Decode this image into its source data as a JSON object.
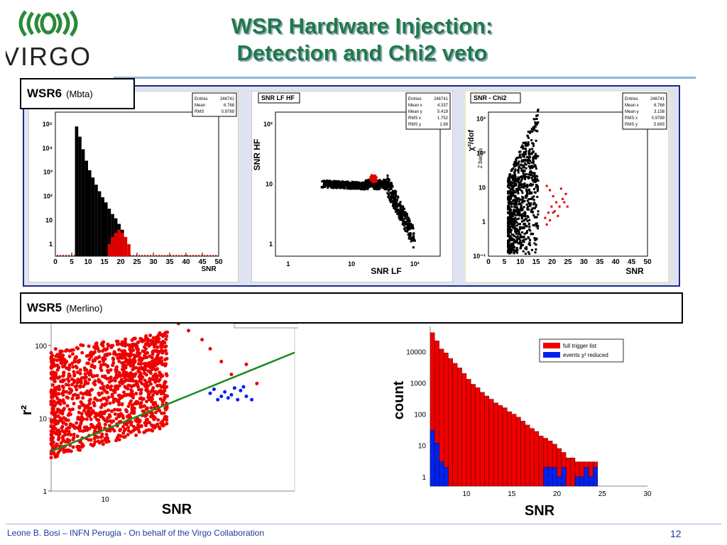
{
  "slide": {
    "title_line1": "WSR Hardware Injection:",
    "title_line2": "Detection and Chi2 veto",
    "logo_text": "VIRGO",
    "wsr6_label": "WSR6",
    "wsr6_sub": "(Mbta)",
    "wsr5_label": "WSR5",
    "wsr5_sub": "(Merlino)",
    "footer_text": "Leone B. Bosi – INFN Perugia - On behalf of the Virgo Collaboration",
    "page_number": "12",
    "colors": {
      "title": "#1f7a4a",
      "accent": "#1c2a8c",
      "signal": "#dd0000",
      "veto": "#0022ee",
      "fit": "#1a8a1a"
    }
  },
  "chart_data": [
    {
      "type": "bar",
      "xlabel": "SNR",
      "xticks": [
        0,
        5,
        10,
        15,
        20,
        25,
        30,
        35,
        40,
        45,
        50
      ],
      "yticks": [
        "1",
        "10",
        "10²",
        "10³",
        "10⁴",
        "10⁵"
      ],
      "log_y": true,
      "stats": [
        [
          "Entries",
          "246741"
        ],
        [
          "Mean",
          "6.768"
        ],
        [
          "RMS",
          "0.9789"
        ]
      ],
      "series": [
        {
          "color": "#000000",
          "x": [
            6,
            7,
            8,
            9,
            10,
            11,
            12,
            13,
            14,
            15,
            16,
            17,
            18,
            19,
            20
          ],
          "values": [
            80000,
            30000,
            9000,
            3000,
            1200,
            600,
            300,
            160,
            90,
            55,
            30,
            18,
            12,
            7,
            4
          ]
        },
        {
          "color": "#dd0000",
          "x": [
            16,
            17,
            18,
            19,
            20,
            21,
            22
          ],
          "values": [
            1,
            2,
            3,
            4,
            3,
            2,
            1
          ]
        }
      ]
    },
    {
      "type": "scatter",
      "title": "SNR LF HF",
      "xlabel": "SNR LF",
      "ylabel": "SNR HF",
      "xticks": [
        "1",
        "10",
        "10²"
      ],
      "yticks": [
        "1",
        "10",
        "10²"
      ],
      "stats": [
        [
          "Entries",
          "246741"
        ],
        [
          "Mean x",
          "4.337"
        ],
        [
          "Mean y",
          "5.419"
        ],
        [
          "RMS x",
          "1.752"
        ],
        [
          "RMS y",
          "1.69"
        ]
      ]
    },
    {
      "type": "scatter",
      "title": "SNR - Chi2",
      "xlabel": "SNR",
      "ylabel": "χ²/dof",
      "ylabel_sub": "2 bands",
      "xticks": [
        0,
        5,
        10,
        15,
        20,
        25,
        30,
        35,
        40,
        45,
        50
      ],
      "yticks": [
        "10⁻¹",
        "1",
        "10",
        "10²",
        "10³"
      ],
      "stats": [
        [
          "Entries",
          "246741"
        ],
        [
          "Mean x",
          "6.768"
        ],
        [
          "Mean y",
          "3.158"
        ],
        [
          "RMS x",
          "0.9789"
        ],
        [
          "RMS y",
          "5.693"
        ]
      ],
      "highlight": [
        [
          18,
          12
        ],
        [
          19,
          9
        ],
        [
          20,
          6
        ],
        [
          21,
          4
        ],
        [
          22,
          3
        ],
        [
          23,
          5
        ],
        [
          24,
          7
        ],
        [
          18.5,
          2
        ],
        [
          19.5,
          3
        ],
        [
          20.5,
          2.2
        ],
        [
          21.5,
          1.6
        ],
        [
          22.5,
          10
        ],
        [
          23.5,
          4
        ],
        [
          24.5,
          3
        ],
        [
          17.5,
          1.4
        ],
        [
          18,
          0.9
        ],
        [
          19,
          1.2
        ],
        [
          20,
          2
        ]
      ]
    },
    {
      "type": "scatter",
      "xlabel": "SNR",
      "ylabel": "r²",
      "xticks": [
        "10"
      ],
      "yticks": [
        "1",
        "10",
        "100"
      ],
      "log_y": true,
      "blue_points": [
        [
          27,
          22
        ],
        [
          28,
          25
        ],
        [
          29,
          18
        ],
        [
          30,
          20
        ],
        [
          31,
          23
        ],
        [
          32,
          19
        ],
        [
          33,
          21
        ],
        [
          34,
          26
        ],
        [
          35,
          18
        ],
        [
          36,
          24
        ],
        [
          37,
          27
        ],
        [
          38,
          20
        ],
        [
          40,
          18
        ]
      ]
    },
    {
      "type": "bar",
      "xlabel": "SNR",
      "ylabel": "count",
      "xticks": [
        10,
        15,
        20,
        25,
        30
      ],
      "yticks": [
        "1",
        "10",
        "100",
        "1000",
        "10000"
      ],
      "log_y": true,
      "legend": [
        "full trigger list",
        "events χ² reduced"
      ],
      "legend_position": "top-right",
      "series": [
        {
          "name": "full trigger list",
          "color": "#ee0000",
          "x": [
            6,
            6.5,
            7,
            7.5,
            8,
            8.5,
            9,
            9.5,
            10,
            10.5,
            11,
            11.5,
            12,
            12.5,
            13,
            13.5,
            14,
            14.5,
            15,
            15.5,
            16,
            16.5,
            17,
            17.5,
            18,
            18.5,
            19,
            19.5,
            20,
            20.5,
            21,
            21.5,
            22,
            22.5,
            23,
            23.5,
            24
          ],
          "values": [
            40000,
            22000,
            12000,
            9000,
            6000,
            4200,
            3000,
            2000,
            1300,
            900,
            700,
            500,
            380,
            300,
            230,
            190,
            160,
            120,
            100,
            80,
            60,
            45,
            35,
            28,
            20,
            17,
            14,
            11,
            8,
            6,
            4,
            4,
            3,
            3,
            3,
            3,
            3
          ]
        },
        {
          "name": "events χ² reduced",
          "color": "#0022ee",
          "x": [
            6,
            6.5,
            7,
            7.5,
            18.5,
            19,
            19.5,
            20,
            20.5,
            22,
            22.5,
            23,
            23.5,
            24
          ],
          "values": [
            30,
            12,
            3,
            2,
            2,
            2,
            2,
            1,
            2,
            1,
            1,
            2,
            1,
            2
          ]
        }
      ]
    }
  ]
}
